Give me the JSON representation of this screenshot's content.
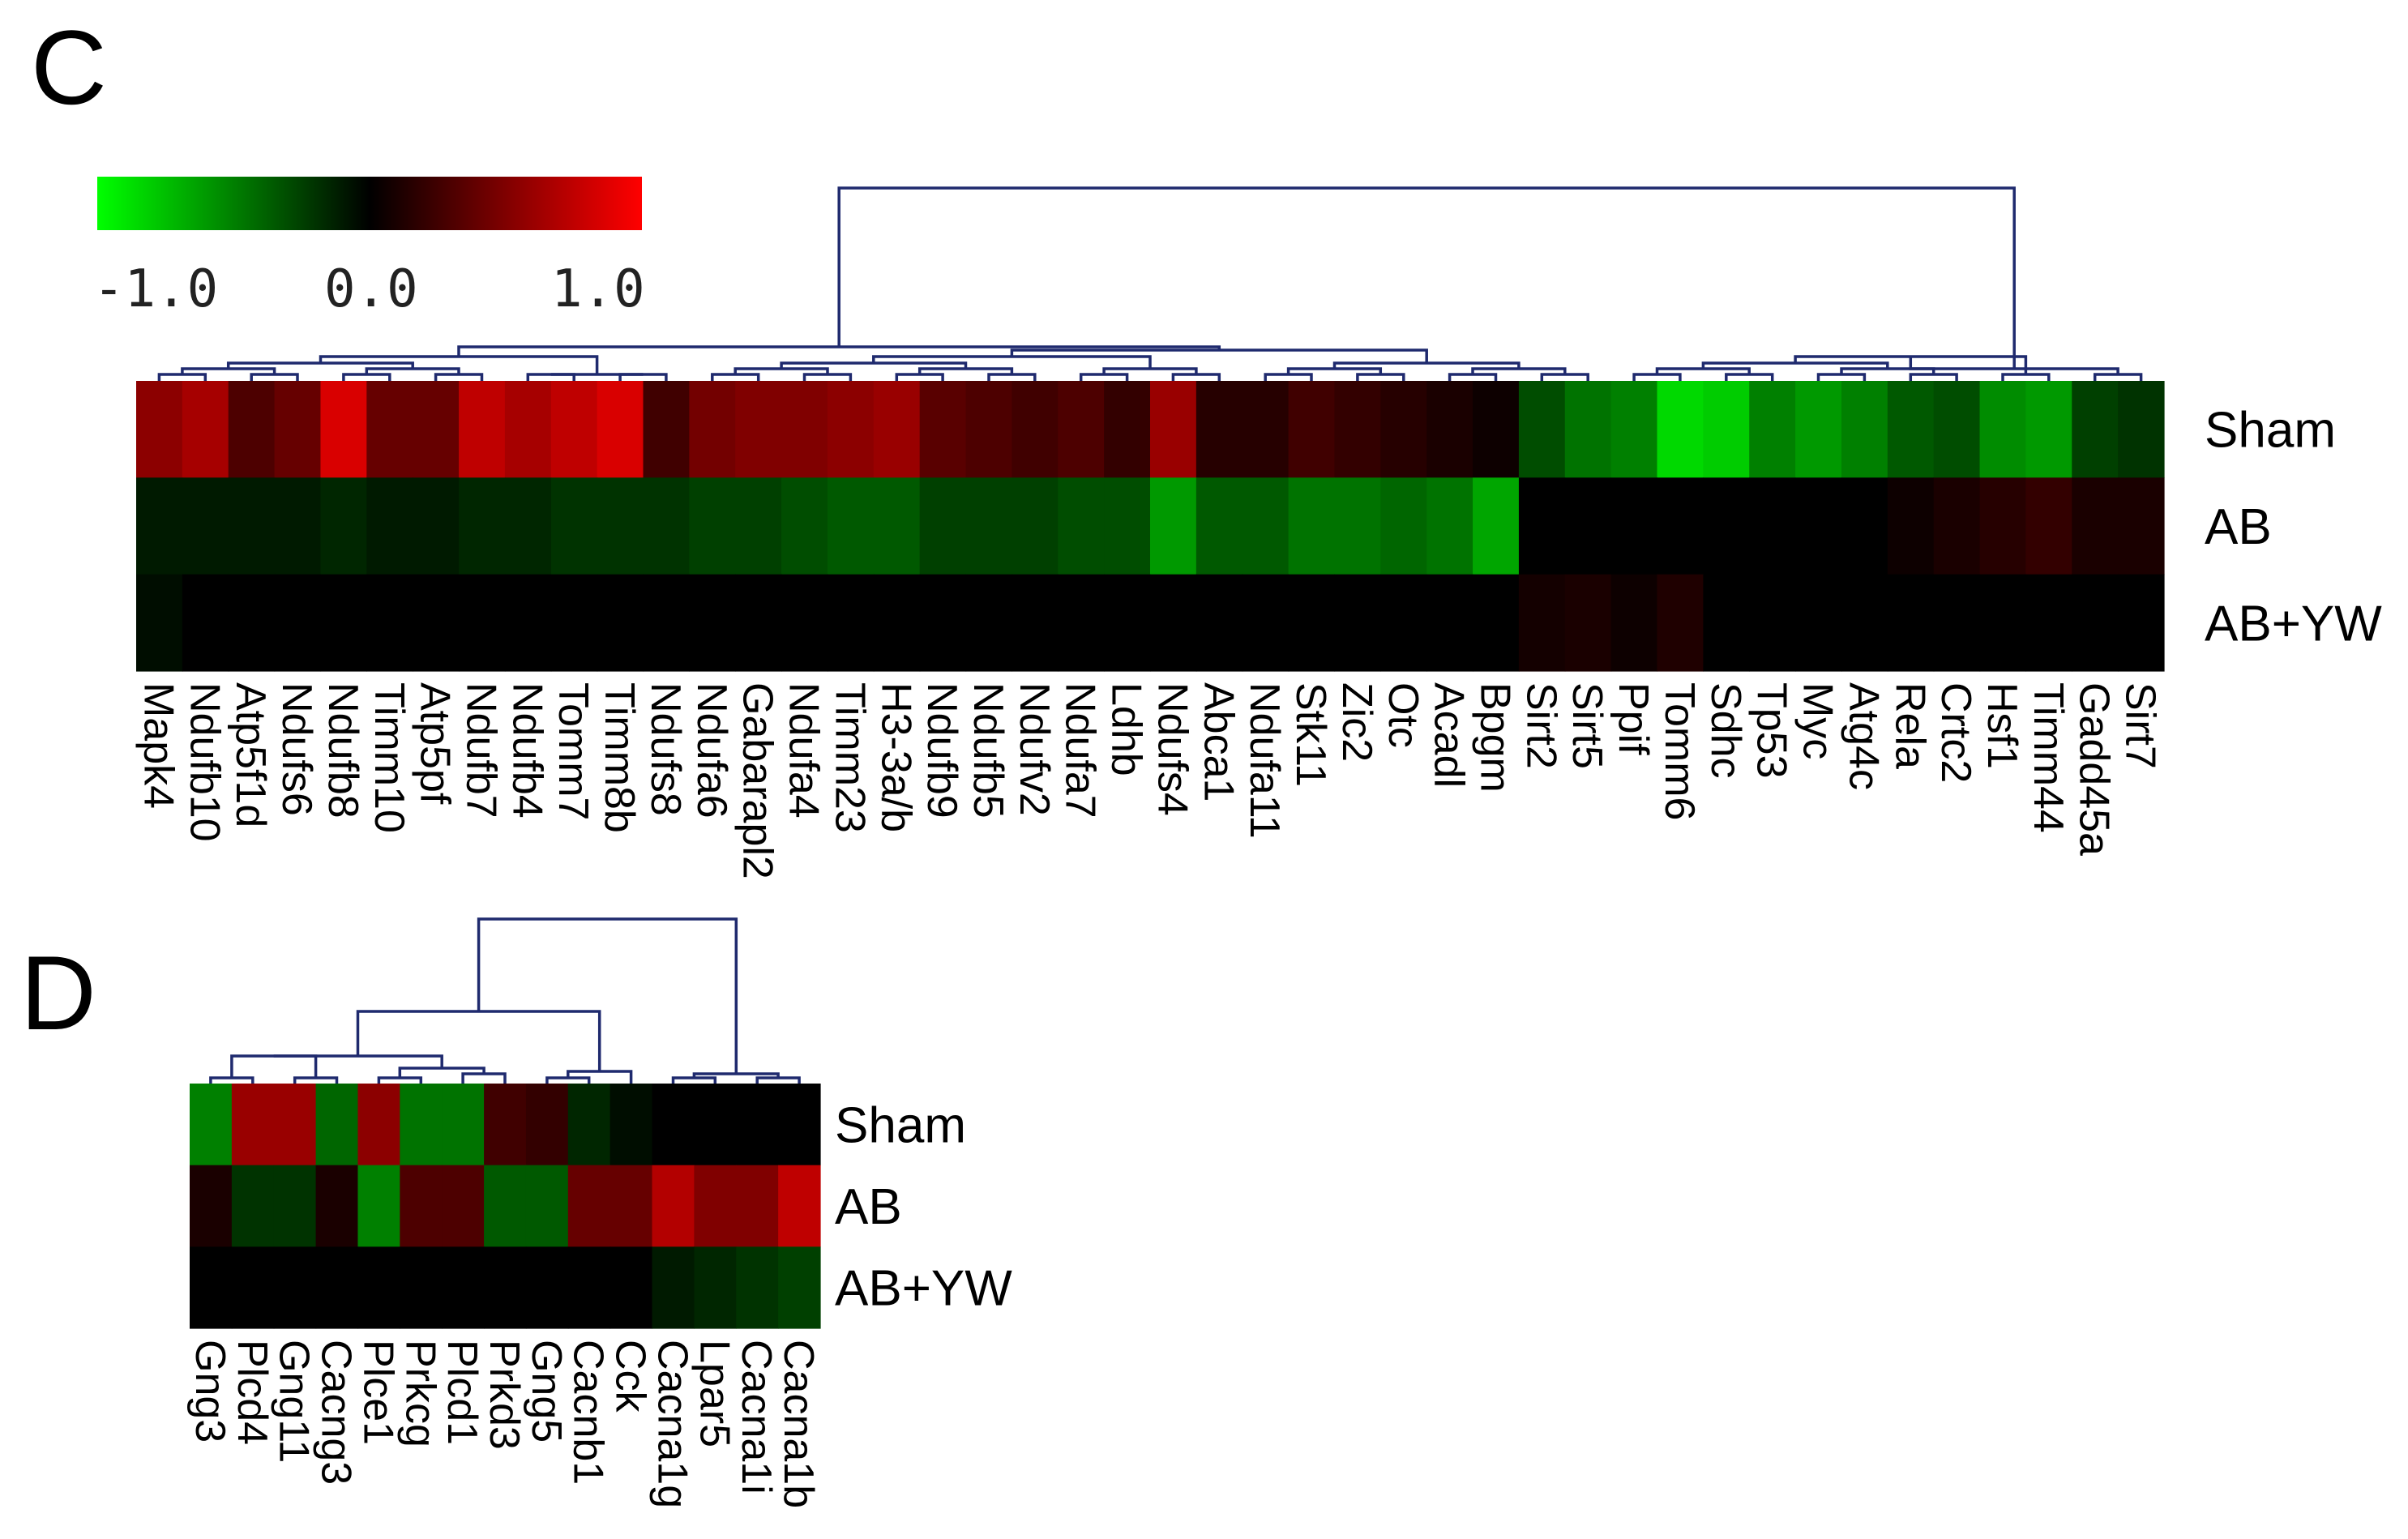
{
  "chart_data": [
    {
      "panel": "C",
      "type": "heatmap",
      "row_labels": [
        "Sham",
        "AB",
        "AB+YW"
      ],
      "col_labels": [
        "Mapk4",
        "Ndufb10",
        "Atp5f1d",
        "Ndufs6",
        "Ndufb8",
        "Timm10",
        "Atp5pf",
        "Ndufb7",
        "Ndufb4",
        "Tomm7",
        "Timm8b",
        "Ndufs8",
        "Ndufa6",
        "Gabarapl2",
        "Ndufa4",
        "Timm23",
        "H3-3a/b",
        "Ndufb9",
        "Ndufb5",
        "Ndufv2",
        "Ndufa7",
        "Ldhb",
        "Ndufs4",
        "Abca1",
        "Ndufa11",
        "Stk11",
        "Zic2",
        "Otc",
        "Acadl",
        "Bpgm",
        "Sirt2",
        "Sirt5",
        "Ppif",
        "Tomm6",
        "Sdhc",
        "Tp53",
        "Myc",
        "Atg4c",
        "Rela",
        "Crtc2",
        "Hsf1",
        "Timm44",
        "Gadd45a",
        "Sirt7"
      ],
      "values": [
        [
          0.55,
          0.65,
          0.3,
          0.4,
          0.85,
          0.4,
          0.4,
          0.75,
          0.65,
          0.75,
          0.85,
          0.25,
          0.45,
          0.5,
          0.5,
          0.55,
          0.6,
          0.35,
          0.3,
          0.25,
          0.3,
          0.2,
          0.6,
          0.15,
          0.15,
          0.25,
          0.2,
          0.15,
          0.1,
          0.05,
          -0.3,
          -0.45,
          -0.5,
          -0.85,
          -0.8,
          -0.5,
          -0.6,
          -0.5,
          -0.35,
          -0.3,
          -0.55,
          -0.6,
          -0.25,
          -0.2
        ],
        [
          -0.1,
          -0.1,
          -0.1,
          -0.1,
          -0.15,
          -0.1,
          -0.1,
          -0.15,
          -0.15,
          -0.2,
          -0.2,
          -0.2,
          -0.25,
          -0.25,
          -0.3,
          -0.35,
          -0.35,
          -0.25,
          -0.25,
          -0.25,
          -0.3,
          -0.3,
          -0.6,
          -0.35,
          -0.35,
          -0.45,
          -0.45,
          -0.4,
          -0.45,
          -0.65,
          0.0,
          0.0,
          0.0,
          0.0,
          0.0,
          0.0,
          0.0,
          0.0,
          0.05,
          0.1,
          0.15,
          0.2,
          0.1,
          0.1
        ],
        [
          -0.05,
          0.0,
          0.0,
          0.0,
          0.0,
          0.0,
          0.0,
          0.0,
          0.0,
          0.0,
          0.0,
          0.0,
          0.0,
          0.0,
          0.0,
          0.0,
          0.0,
          0.0,
          0.0,
          0.0,
          0.0,
          0.0,
          0.0,
          0.0,
          0.0,
          0.0,
          0.0,
          0.0,
          0.0,
          0.0,
          0.08,
          0.1,
          0.05,
          0.12,
          0.0,
          0.0,
          0.0,
          0.0,
          0.0,
          0.0,
          0.0,
          0.0,
          0.0,
          0.0
        ]
      ],
      "color_scale": {
        "min": -1.0,
        "max": 1.0,
        "low_color": "#00ff00",
        "mid_color": "#000000",
        "high_color": "#ff0000"
      },
      "scale_labels": [
        "-1.0",
        "0.0",
        "1.0"
      ]
    },
    {
      "panel": "D",
      "type": "heatmap",
      "row_labels": [
        "Sham",
        "AB",
        "AB+YW"
      ],
      "col_labels": [
        "Gng3",
        "Plcd4",
        "Gng11",
        "Cacng3",
        "Plce1",
        "Prkcg",
        "Plcd1",
        "Prkd3",
        "Gng5",
        "Cacnb1",
        "Cck",
        "Cacna1g",
        "Lpar5",
        "Cacna1i",
        "Cacna1b"
      ],
      "values": [
        [
          -0.5,
          0.6,
          0.6,
          -0.4,
          0.55,
          -0.45,
          -0.45,
          0.25,
          0.2,
          -0.15,
          -0.05,
          0.0,
          0.0,
          0.0,
          0.0
        ],
        [
          0.1,
          -0.2,
          -0.2,
          0.1,
          -0.5,
          0.3,
          0.3,
          -0.35,
          -0.35,
          0.4,
          0.4,
          0.7,
          0.5,
          0.5,
          0.75
        ],
        [
          0.0,
          0.0,
          0.0,
          0.0,
          0.0,
          0.0,
          0.0,
          0.0,
          0.0,
          0.0,
          0.0,
          -0.1,
          -0.15,
          -0.2,
          -0.25
        ]
      ],
      "color_scale": {
        "min": -1.0,
        "max": 1.0,
        "low_color": "#00ff00",
        "mid_color": "#000000",
        "high_color": "#ff0000"
      }
    }
  ]
}
